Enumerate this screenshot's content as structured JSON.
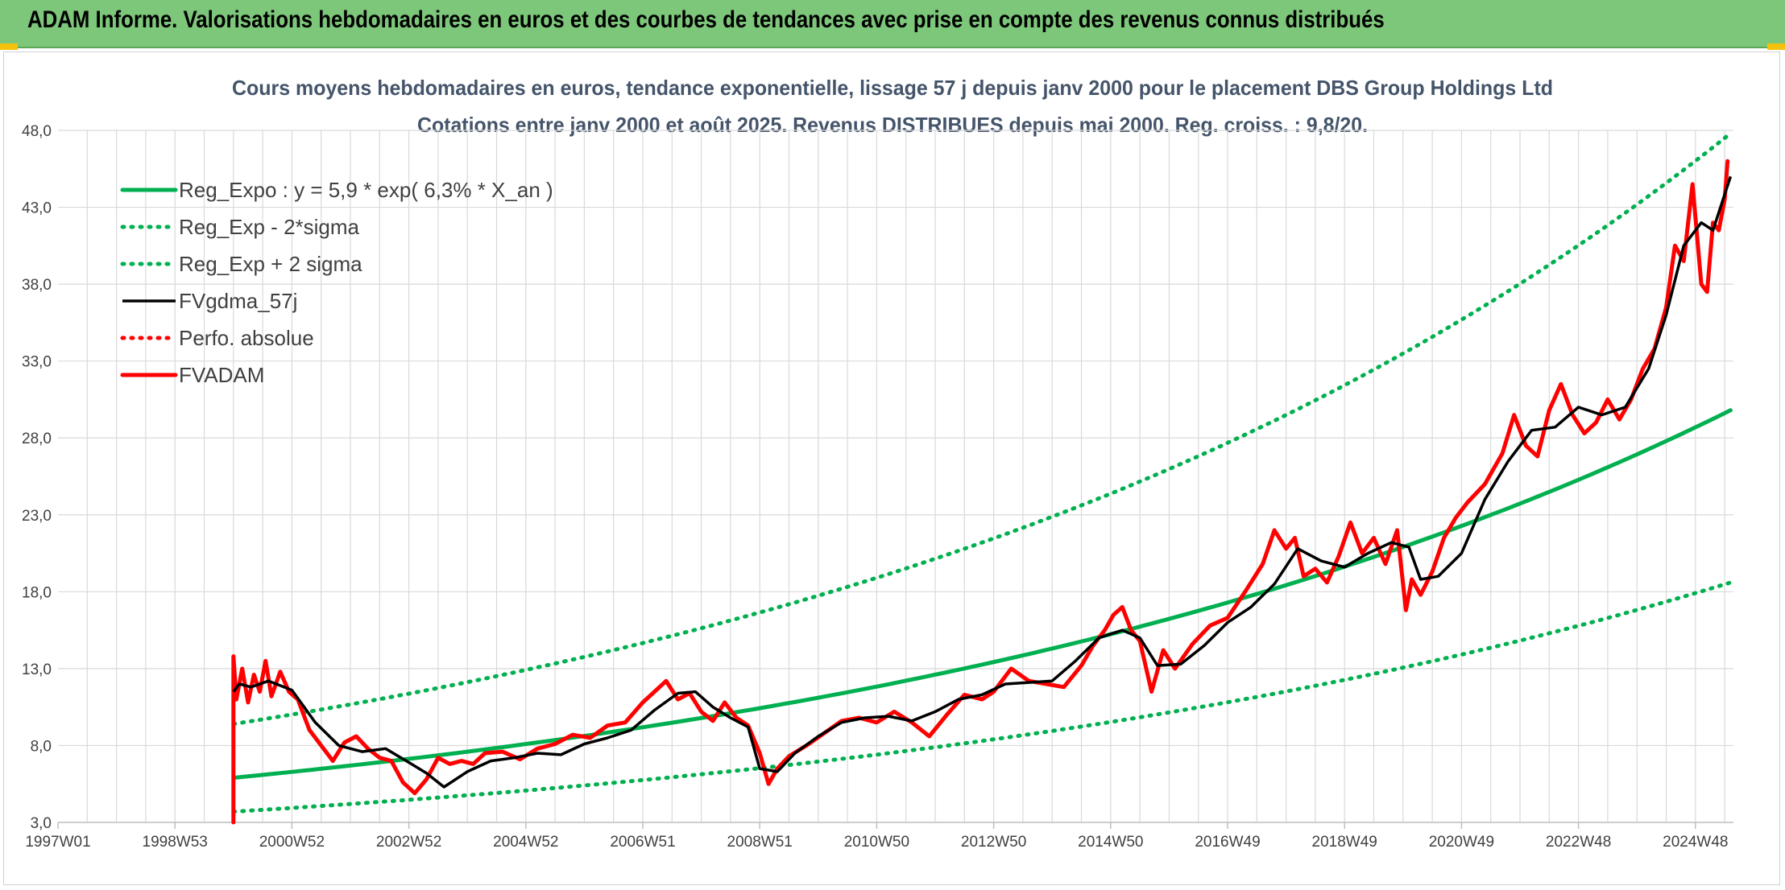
{
  "header": {
    "banner_title": "ADAM Informe. Valorisations hebdomadaires en euros et des courbes de tendances avec prise en compte des revenus connus distribués"
  },
  "colors": {
    "banner_bg": "#7dc77a",
    "reg_expo": "#00b050",
    "fvgdma": "#000000",
    "fvadam": "#ff0000",
    "grid": "#d9d9d9",
    "title": "#44546a"
  },
  "chart_data": {
    "type": "line",
    "title_line1": "Cours moyens hebdomadaires en euros, tendance exponentielle, lissage 57 j depuis janv 2000 pour le placement DBS Group Holdings Ltd",
    "title_line2": "Cotations entre janv 2000 et août 2025. Revenus DISTRIBUES depuis mai 2000. Reg. croiss. : 9,8/20.",
    "x_axis": {
      "type": "date",
      "start": 1997.0,
      "end": 2025.65,
      "tick_labels": [
        "1997W01",
        "1998W53",
        "2000W52",
        "2002W52",
        "2004W52",
        "2006W51",
        "2008W51",
        "2010W50",
        "2012W50",
        "2014W50",
        "2016W49",
        "2018W49",
        "2020W49",
        "2022W48",
        "2024W48"
      ],
      "tick_years": [
        1997.0,
        1999.0,
        2001.0,
        2003.0,
        2005.0,
        2007.0,
        2009.0,
        2011.0,
        2013.0,
        2015.0,
        2017.0,
        2019.0,
        2021.0,
        2023.0,
        2025.0
      ]
    },
    "y_axis": {
      "ylim": [
        3.0,
        48.0
      ],
      "tick_labels": [
        "3,0",
        "8,0",
        "13,0",
        "18,0",
        "23,0",
        "28,0",
        "33,0",
        "38,0",
        "43,0",
        "48,0"
      ],
      "tick_values": [
        3,
        8,
        13,
        18,
        23,
        28,
        33,
        38,
        43,
        48
      ]
    },
    "grid": true,
    "legend_position": "top-left",
    "series": [
      {
        "name": "Reg_Expo : y = 5,9 * exp( 6,3% *  X_an )",
        "style": "solid-thick",
        "color": "#00b050",
        "x": [
          2000.0,
          2025.6
        ],
        "y": [
          5.9,
          29.8
        ],
        "curve": "exponential"
      },
      {
        "name": "Reg_Exp - 2*sigma",
        "style": "dotted",
        "color": "#00b050",
        "x": [
          2000.0,
          2025.6
        ],
        "y": [
          3.7,
          18.6
        ],
        "curve": "exponential"
      },
      {
        "name": "Reg_Exp + 2 sigma",
        "style": "dotted",
        "color": "#00b050",
        "x": [
          2000.0,
          2025.6
        ],
        "y": [
          9.4,
          47.8
        ],
        "curve": "exponential"
      },
      {
        "name": "FVgdma_57j",
        "style": "solid",
        "color": "#000000",
        "x": [
          2000.0,
          2000.1,
          2000.3,
          2000.6,
          2001.0,
          2001.4,
          2001.8,
          2002.2,
          2002.6,
          2003.0,
          2003.3,
          2003.6,
          2004.0,
          2004.4,
          2004.8,
          2005.2,
          2005.6,
          2006.0,
          2006.4,
          2006.8,
          2007.2,
          2007.6,
          2007.9,
          2008.2,
          2008.5,
          2008.8,
          2009.0,
          2009.3,
          2009.6,
          2010.0,
          2010.4,
          2010.8,
          2011.2,
          2011.6,
          2012.0,
          2012.4,
          2012.8,
          2013.2,
          2013.6,
          2014.0,
          2014.4,
          2014.8,
          2015.2,
          2015.5,
          2015.8,
          2016.2,
          2016.6,
          2017.0,
          2017.4,
          2017.8,
          2018.2,
          2018.6,
          2019.0,
          2019.4,
          2019.8,
          2020.1,
          2020.3,
          2020.6,
          2021.0,
          2021.4,
          2021.8,
          2022.2,
          2022.6,
          2023.0,
          2023.4,
          2023.8,
          2024.2,
          2024.5,
          2024.8,
          2025.1,
          2025.3,
          2025.6
        ],
        "y": [
          11.5,
          12.0,
          11.8,
          12.2,
          11.6,
          9.5,
          8.0,
          7.6,
          7.8,
          6.9,
          6.2,
          5.3,
          6.3,
          7.0,
          7.2,
          7.5,
          7.4,
          8.1,
          8.5,
          9.0,
          10.3,
          11.4,
          11.5,
          10.5,
          9.8,
          9.2,
          6.5,
          6.3,
          7.5,
          8.6,
          9.5,
          9.8,
          9.9,
          9.6,
          10.2,
          11.0,
          11.3,
          12.0,
          12.1,
          12.2,
          13.5,
          15.0,
          15.5,
          15.0,
          13.2,
          13.3,
          14.5,
          16.0,
          17.0,
          18.5,
          20.8,
          20.0,
          19.6,
          20.5,
          21.2,
          20.9,
          18.8,
          19.0,
          20.5,
          24.0,
          26.5,
          28.5,
          28.7,
          30.0,
          29.5,
          30.0,
          32.5,
          36.0,
          40.5,
          42.0,
          41.5,
          45.0
        ]
      },
      {
        "name": "Perfo. absolue",
        "style": "dotted",
        "color": "#ff0000",
        "x": [],
        "y": []
      },
      {
        "name": "FVADAM",
        "style": "solid-thick",
        "color": "#ff0000",
        "x": [
          2000.0,
          2000.0,
          2000.05,
          2000.15,
          2000.25,
          2000.35,
          2000.45,
          2000.55,
          2000.65,
          2000.8,
          2000.95,
          2001.1,
          2001.3,
          2001.5,
          2001.7,
          2001.9,
          2002.1,
          2002.3,
          2002.5,
          2002.7,
          2002.9,
          2003.1,
          2003.3,
          2003.5,
          2003.7,
          2003.9,
          2004.1,
          2004.3,
          2004.6,
          2004.9,
          2005.2,
          2005.5,
          2005.8,
          2006.1,
          2006.4,
          2006.7,
          2007.0,
          2007.2,
          2007.4,
          2007.6,
          2007.8,
          2008.0,
          2008.2,
          2008.4,
          2008.6,
          2008.8,
          2009.0,
          2009.15,
          2009.3,
          2009.5,
          2009.8,
          2010.1,
          2010.4,
          2010.7,
          2011.0,
          2011.3,
          2011.6,
          2011.9,
          2012.2,
          2012.5,
          2012.8,
          2013.0,
          2013.3,
          2013.6,
          2013.9,
          2014.2,
          2014.5,
          2014.7,
          2014.9,
          2015.05,
          2015.2,
          2015.35,
          2015.5,
          2015.7,
          2015.9,
          2016.1,
          2016.4,
          2016.7,
          2017.0,
          2017.3,
          2017.6,
          2017.8,
          2018.0,
          2018.15,
          2018.3,
          2018.5,
          2018.7,
          2018.9,
          2019.1,
          2019.3,
          2019.5,
          2019.7,
          2019.9,
          2020.05,
          2020.15,
          2020.3,
          2020.5,
          2020.7,
          2020.9,
          2021.1,
          2021.4,
          2021.7,
          2021.9,
          2022.1,
          2022.3,
          2022.5,
          2022.7,
          2022.9,
          2023.1,
          2023.3,
          2023.5,
          2023.7,
          2023.9,
          2024.1,
          2024.3,
          2024.5,
          2024.65,
          2024.8,
          2024.95,
          2025.1,
          2025.2,
          2025.3,
          2025.4,
          2025.5,
          2025.55
        ],
        "y": [
          3.0,
          13.8,
          11.0,
          13.0,
          10.8,
          12.6,
          11.5,
          13.5,
          11.2,
          12.8,
          11.5,
          11.0,
          9.0,
          8.0,
          7.0,
          8.2,
          8.6,
          7.8,
          7.2,
          7.0,
          5.6,
          4.9,
          5.8,
          7.2,
          6.8,
          7.0,
          6.8,
          7.5,
          7.6,
          7.1,
          7.8,
          8.1,
          8.7,
          8.5,
          9.3,
          9.5,
          10.8,
          11.5,
          12.2,
          11.0,
          11.4,
          10.2,
          9.6,
          10.8,
          9.8,
          9.3,
          7.5,
          5.5,
          6.5,
          7.3,
          8.0,
          8.8,
          9.6,
          9.8,
          9.5,
          10.2,
          9.5,
          8.6,
          10.0,
          11.3,
          11.0,
          11.5,
          13.0,
          12.2,
          12.0,
          11.8,
          13.2,
          14.5,
          15.5,
          16.5,
          17.0,
          15.5,
          14.8,
          11.5,
          14.2,
          13.0,
          14.6,
          15.8,
          16.3,
          18.0,
          19.8,
          22.0,
          20.8,
          21.5,
          19.0,
          19.5,
          18.6,
          20.3,
          22.5,
          20.5,
          21.5,
          19.8,
          22.0,
          16.8,
          18.8,
          17.8,
          19.3,
          21.5,
          22.8,
          23.8,
          25.0,
          27.0,
          29.5,
          27.5,
          26.8,
          29.8,
          31.5,
          29.5,
          28.3,
          29.0,
          30.5,
          29.2,
          30.5,
          32.5,
          33.8,
          36.5,
          40.5,
          39.5,
          44.5,
          38.0,
          37.5,
          42.0,
          41.5,
          43.5,
          46.0
        ]
      }
    ]
  }
}
